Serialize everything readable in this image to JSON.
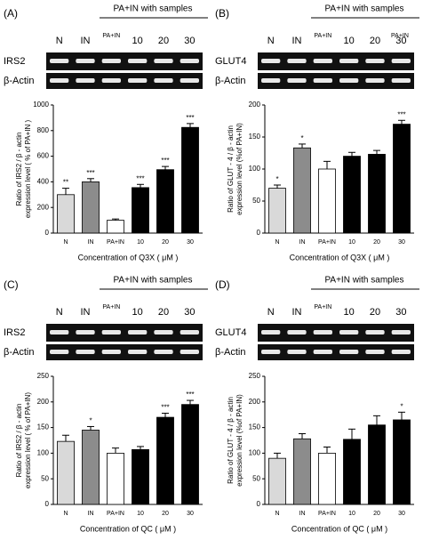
{
  "chart_data": [
    {
      "type": "bar",
      "panel": "(A)",
      "blot_group": "PA+IN with samples",
      "blot_rows": [
        "IRS2",
        "β-Actin"
      ],
      "categories": [
        "N",
        "IN",
        "PA+IN",
        "10",
        "20",
        "30"
      ],
      "values": [
        300,
        400,
        100,
        355,
        495,
        825
      ],
      "errors": [
        50,
        25,
        10,
        25,
        25,
        30
      ],
      "significance": [
        "**",
        "***",
        null,
        "***",
        "***",
        "***"
      ],
      "colors": [
        "#d9d9d9",
        "#8c8c8c",
        "#ffffff",
        "#000000",
        "#000000",
        "#000000"
      ],
      "ylabel": [
        "Ratio of IRS2 / β - actin",
        "expression level ( % of PA+IN )"
      ],
      "xlabel": "Concentration of Q3X ( μM )",
      "ylim": [
        0,
        1000
      ],
      "yticks": [
        0,
        200,
        400,
        600,
        800,
        1000
      ]
    },
    {
      "type": "bar",
      "panel": "(B)",
      "blot_group": "PA+IN with samples",
      "blot_rows": [
        "GLUT4",
        "β-Actin"
      ],
      "note": "PA+IN",
      "categories": [
        "N",
        "IN",
        "PA+IN",
        "10",
        "20",
        "30"
      ],
      "values": [
        70,
        133,
        100,
        120,
        123,
        170
      ],
      "errors": [
        5,
        6,
        12,
        6,
        6,
        6
      ],
      "significance": [
        "*",
        "*",
        null,
        null,
        null,
        "***"
      ],
      "colors": [
        "#d9d9d9",
        "#8c8c8c",
        "#ffffff",
        "#000000",
        "#000000",
        "#000000"
      ],
      "ylabel": [
        "Ratio of GLUT - 4 / β - actin",
        "expression level (%of PA+IN)"
      ],
      "xlabel": "Concentration of Q3X ( μM )",
      "ylim": [
        0,
        200
      ],
      "yticks": [
        0,
        50,
        100,
        150,
        200
      ]
    },
    {
      "type": "bar",
      "panel": "(C)",
      "blot_group": "PA+IN with samples",
      "blot_rows": [
        "IRS2",
        "β-Actin"
      ],
      "categories": [
        "N",
        "IN",
        "PA+IN",
        "10",
        "20",
        "30"
      ],
      "values": [
        123,
        145,
        100,
        107,
        170,
        195
      ],
      "errors": [
        12,
        7,
        10,
        6,
        8,
        8
      ],
      "significance": [
        null,
        "*",
        null,
        null,
        "***",
        "***"
      ],
      "colors": [
        "#d9d9d9",
        "#8c8c8c",
        "#ffffff",
        "#000000",
        "#000000",
        "#000000"
      ],
      "ylabel": [
        "Ratio of IRS2 / β - actin",
        "expression level ( % of PA+IN)"
      ],
      "xlabel": "Concentration of QC ( μM )",
      "ylim": [
        0,
        250
      ],
      "yticks": [
        0,
        50,
        100,
        150,
        200,
        250
      ]
    },
    {
      "type": "bar",
      "panel": "(D)",
      "blot_group": "PA+IN with samples",
      "blot_rows": [
        "GLUT4",
        "β-Actin"
      ],
      "categories": [
        "N",
        "IN",
        "PA+IN",
        "10",
        "20",
        "30"
      ],
      "values": [
        90,
        128,
        100,
        127,
        155,
        165
      ],
      "errors": [
        10,
        10,
        12,
        20,
        18,
        15
      ],
      "significance": [
        null,
        null,
        null,
        null,
        null,
        "*"
      ],
      "colors": [
        "#d9d9d9",
        "#8c8c8c",
        "#ffffff",
        "#000000",
        "#000000",
        "#000000"
      ],
      "ylabel": [
        "Ratio of GLUT - 4 / β - actin",
        "expression level (%of PA+IN)"
      ],
      "xlabel": "Concentration of QC ( μM )",
      "ylim": [
        0,
        250
      ],
      "yticks": [
        0,
        50,
        100,
        150,
        200,
        250
      ]
    }
  ]
}
